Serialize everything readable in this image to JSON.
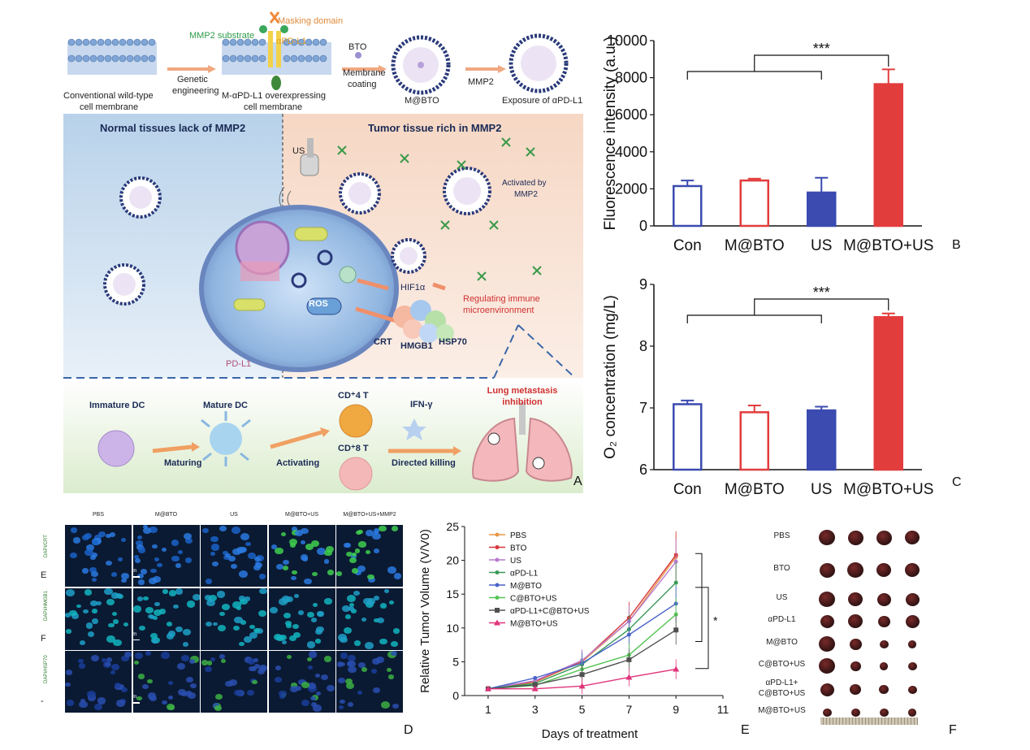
{
  "panelA": {
    "letter": "A",
    "top": {
      "wild_type_label_1": "Conventional wild-type",
      "wild_type_label_2": "cell membrane",
      "genetic_1": "Genetic",
      "genetic_2": "engineering",
      "mmp2_substrate": "MMP2 substrate",
      "masking_domain": "Masking domain",
      "apdl1": "αPD-L1",
      "overexp_1": "M-αPD-L1 overexpressing",
      "overexp_2": "cell membrane",
      "bto": "BTO",
      "membrane_1": "Membrane",
      "membrane_2": "coating",
      "mbto": "M@BTO",
      "mmp2": "MMP2",
      "exposure": "Exposure of αPD-L1"
    },
    "middle": {
      "normal": "Normal tissues lack of MMP2",
      "tumor": "Tumor tissue rich in MMP2",
      "us": "US",
      "activated_1": "Activated by",
      "activated_2": "MMP2",
      "hif": "HIF1α",
      "regulating_1": "Regulating immune",
      "regulating_2": "microenvironment",
      "ros": "ROS",
      "crt": "CRT",
      "hmgb1": "HMGB1",
      "hsp70": "HSP70",
      "pdl1": "PD-L1"
    },
    "bottom": {
      "immature": "Immature DC",
      "mature": "Mature DC",
      "maturing": "Maturing",
      "activating": "Activating",
      "cd4": "CD⁺4 T",
      "cd8": "CD⁺8 T",
      "ifn": "IFN-γ",
      "directed": "Directed killing",
      "lung_1": "Lung metastasis",
      "lung_2": "inhibition"
    }
  },
  "panelB": {
    "letter": "B",
    "significance": "***",
    "chart_data": {
      "type": "bar",
      "categories": [
        "Con",
        "M@BTO",
        "US",
        "M@BTO+US"
      ],
      "values": [
        2150,
        2450,
        1800,
        7650
      ],
      "errors": [
        300,
        100,
        800,
        800
      ],
      "ylabel": "Fluorescence intensity (a.u.)",
      "ylim": [
        0,
        10000
      ],
      "yticks": [
        "0",
        "2000",
        "4000",
        "6000",
        "8000",
        "10000"
      ],
      "colors": [
        "#3b4bb0",
        "#e23d3d",
        "#3b4bb0",
        "#e23d3d"
      ],
      "filled": [
        false,
        false,
        true,
        true
      ]
    }
  },
  "panelC": {
    "letter": "C",
    "significance": "***",
    "chart_data": {
      "type": "bar",
      "categories": [
        "Con",
        "M@BTO",
        "US",
        "M@BTO+US"
      ],
      "values": [
        7.06,
        6.93,
        6.96,
        8.47
      ],
      "errors": [
        0.06,
        0.11,
        0.06,
        0.06
      ],
      "ylabel": "O₂ concentration (mg/L)",
      "ylim": [
        6,
        9
      ],
      "yticks": [
        "6",
        "7",
        "8",
        "9"
      ],
      "colors": [
        "#3b4bb0",
        "#e23d3d",
        "#3b4bb0",
        "#e23d3d"
      ],
      "filled": [
        false,
        false,
        true,
        true
      ]
    }
  },
  "panelD": {
    "letter": "D",
    "columns": [
      "PBS",
      "M@BTO",
      "US",
      "M@BTO+US",
      "M@BTO+US+MMP2"
    ],
    "rows": [
      {
        "letter": "E",
        "stain": "DAPI/CRT",
        "scale": "50 μm"
      },
      {
        "letter": "F",
        "stain": "DAPI/HMGB1",
        "scale": "50 μm"
      },
      {
        "letter": "-",
        "stain": "DAPI/HSP70",
        "scale": "50 μm"
      }
    ]
  },
  "panelE": {
    "letter": "E",
    "significance": "*",
    "chart_data": {
      "type": "line",
      "x": [
        1,
        3,
        5,
        7,
        9
      ],
      "xlabel": "Days of treatment",
      "ylabel": "Relative Tumor Volume (V/V0)",
      "xlim": [
        0,
        11
      ],
      "ylim": [
        0,
        25
      ],
      "xticks": [
        "1",
        "3",
        "5",
        "7",
        "9",
        "11"
      ],
      "yticks": [
        "0",
        "5",
        "10",
        "15",
        "20",
        "25"
      ],
      "series": [
        {
          "name": "PBS",
          "color": "#e8984a",
          "marker": "circle",
          "values": [
            1,
            2.0,
            5.0,
            11.0,
            20.5
          ]
        },
        {
          "name": "BTO",
          "color": "#d6373a",
          "marker": "circle",
          "values": [
            1,
            2.1,
            5.1,
            11.5,
            20.8
          ]
        },
        {
          "name": "US",
          "color": "#b77ad0",
          "marker": "circle",
          "values": [
            1,
            2.2,
            5.2,
            11.0,
            19.8
          ]
        },
        {
          "name": "αPD-L1",
          "color": "#3a9a58",
          "marker": "circle",
          "values": [
            1,
            1.8,
            4.6,
            9.8,
            16.7
          ]
        },
        {
          "name": "M@BTO",
          "color": "#4a63c8",
          "marker": "circle",
          "values": [
            1,
            2.6,
            4.8,
            9.0,
            13.6
          ]
        },
        {
          "name": "C@BTO+US",
          "color": "#55c455",
          "marker": "circle",
          "values": [
            1,
            1.5,
            3.9,
            6.0,
            12.0
          ]
        },
        {
          "name": "αPD-L1+C@BTO+US",
          "color": "#505050",
          "marker": "square",
          "values": [
            1,
            1.6,
            3.1,
            5.3,
            9.7
          ]
        },
        {
          "name": "M@BTO+US",
          "color": "#e0337a",
          "marker": "triangle",
          "values": [
            1,
            1.0,
            1.4,
            2.7,
            3.9
          ]
        }
      ]
    }
  },
  "panelF": {
    "letter": "F",
    "groups": [
      "PBS",
      "BTO",
      "US",
      "αPD-L1",
      "M@BTO",
      "C@BTO+US",
      "αPD-L1+",
      "C@BTO+US",
      "M@BTO+US"
    ]
  }
}
